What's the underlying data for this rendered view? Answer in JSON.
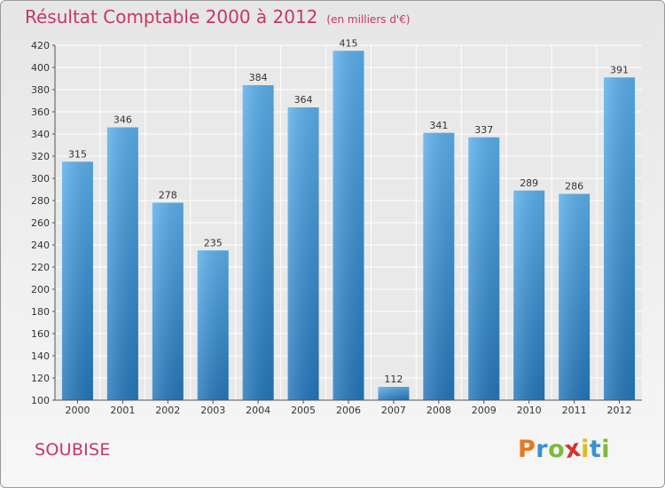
{
  "chart_data": {
    "type": "bar",
    "title": "Résultat Comptable 2000 à 2012",
    "subtitle": "(en milliers d'€)",
    "categories": [
      "2000",
      "2001",
      "2002",
      "2003",
      "2004",
      "2005",
      "2006",
      "2007",
      "2008",
      "2009",
      "2010",
      "2011",
      "2012"
    ],
    "values": [
      315,
      346,
      278,
      235,
      384,
      364,
      415,
      112,
      341,
      337,
      289,
      286,
      391
    ],
    "ylim": [
      100,
      420
    ],
    "yticks": [
      100,
      120,
      140,
      160,
      180,
      200,
      220,
      240,
      260,
      280,
      300,
      320,
      340,
      360,
      380,
      400,
      420
    ],
    "xlabel": "",
    "ylabel": "",
    "grid": true,
    "bar_color": "#2f80c4"
  },
  "footer": {
    "commune": "SOUBISE",
    "logo": {
      "text": "Proxiti",
      "letter_colors": [
        "#e8781c",
        "#3b8fd0",
        "#7dba3c",
        "#d8322c",
        "#e0b820",
        "#3b8fd0",
        "#7dba3c"
      ]
    }
  }
}
